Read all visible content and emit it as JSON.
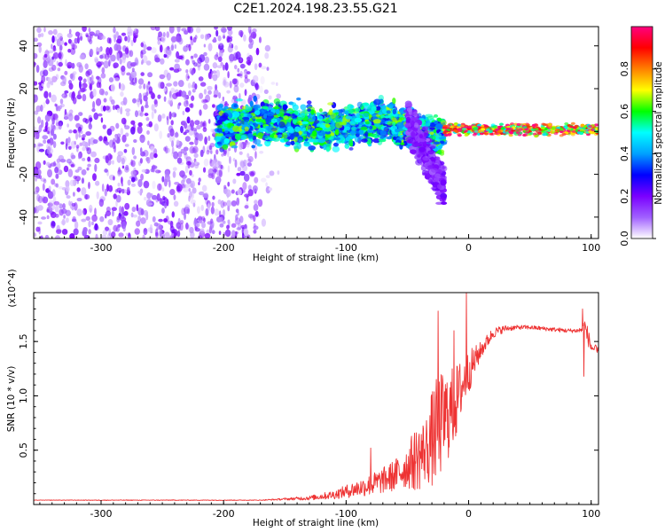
{
  "chart_data": [
    {
      "type": "heatmap",
      "title": "C2E1.2024.198.23.55.G21",
      "xlabel": "Height of straight line (km)",
      "ylabel": "Frequency (Hz)",
      "xlim": [
        -355,
        106
      ],
      "ylim": [
        -50,
        49
      ],
      "x_ticks": [
        -300,
        -200,
        -100,
        0,
        100
      ],
      "x_tick_labels": [
        "-300",
        "-200",
        "-100",
        "0",
        "100"
      ],
      "y_ticks": [
        -40,
        -20,
        0,
        20,
        40
      ],
      "y_tick_labels": [
        "-40",
        "-20",
        "0",
        "20",
        "40"
      ],
      "colorbar": {
        "label": "Normalized spectral amplitude",
        "range": [
          0,
          1
        ],
        "ticks": [
          0,
          0.2,
          0.4,
          0.6,
          0.8
        ],
        "tick_labels": [
          "0.0",
          "0.2",
          "0.4",
          "0.6",
          "0.8"
        ],
        "colors": [
          "#ffffff",
          "#a060ff",
          "#7a00ff",
          "#0000ff",
          "#00a0ff",
          "#00ffff",
          "#00ff00",
          "#ffff00",
          "#ff8000",
          "#ff0000",
          "#ff0080"
        ]
      },
      "regions": [
        {
          "x": [
            -355,
            -170
          ],
          "freq_range": [
            -50,
            49
          ],
          "amplitude": 0.12,
          "texture": "scattered speckle"
        },
        {
          "x": [
            -170,
            -155
          ],
          "freq_range": [
            -45,
            40
          ],
          "amplitude": 0.05,
          "texture": "faint speckle"
        },
        {
          "x": [
            -205,
            -20
          ],
          "center_freq": 3,
          "half_width": 7,
          "amplitude": 0.45,
          "texture": "clustered band"
        },
        {
          "x": [
            -50,
            -20
          ],
          "center_freq": -15,
          "half_width": 8,
          "amplitude": 0.15,
          "texture": "descending streak"
        },
        {
          "x": [
            -20,
            106
          ],
          "center_freq": 1,
          "half_width": 2,
          "amplitude": 0.75,
          "texture": "narrow carrier"
        }
      ]
    },
    {
      "type": "line",
      "title": "",
      "xlabel": "Height of straight line (km)",
      "ylabel": "SNR (10 * v/v)",
      "y_multiplier": "(x10^4)",
      "xlim": [
        -355,
        106
      ],
      "ylim": [
        0,
        1.95
      ],
      "x_ticks": [
        -300,
        -200,
        -100,
        0,
        100
      ],
      "x_tick_labels": [
        "-300",
        "-200",
        "-100",
        "0",
        "100"
      ],
      "y_ticks": [
        0.5,
        1.0,
        1.5
      ],
      "y_tick_labels": [
        "0.5",
        "1.0",
        "1.5"
      ],
      "series": [
        {
          "color": "#ee3333",
          "x": [
            -355,
            -300,
            -250,
            -200,
            -170,
            -150,
            -130,
            -110,
            -100,
            -90,
            -80,
            -70,
            -60,
            -50,
            -45,
            -40,
            -35,
            -30,
            -25,
            -20,
            -15,
            -10,
            -5,
            0,
            10,
            20,
            30,
            40,
            50,
            60,
            70,
            80,
            90,
            95,
            100,
            106
          ],
          "y": [
            0.04,
            0.04,
            0.04,
            0.04,
            0.04,
            0.05,
            0.06,
            0.09,
            0.12,
            0.15,
            0.18,
            0.22,
            0.27,
            0.35,
            0.4,
            0.45,
            0.5,
            0.6,
            0.7,
            0.78,
            0.85,
            0.95,
            1.1,
            1.22,
            1.42,
            1.58,
            1.62,
            1.63,
            1.63,
            1.62,
            1.61,
            1.6,
            1.6,
            1.63,
            1.45,
            1.4
          ],
          "noise": [
            0.002,
            0.003,
            0.003,
            0.003,
            0.003,
            0.01,
            0.02,
            0.04,
            0.06,
            0.08,
            0.1,
            0.12,
            0.15,
            0.2,
            0.28,
            0.32,
            0.3,
            0.45,
            0.5,
            0.45,
            0.4,
            0.35,
            0.25,
            0.2,
            0.08,
            0.05,
            0.03,
            0.02,
            0.02,
            0.02,
            0.02,
            0.02,
            0.02,
            0.1,
            0.06,
            0.04
          ],
          "spikes": [
            [
              -80,
              0.52
            ],
            [
              -25,
              1.78
            ],
            [
              -12,
              1.6
            ],
            [
              -2,
              1.95
            ],
            [
              93,
              1.8
            ],
            [
              94,
              1.18
            ]
          ]
        }
      ]
    }
  ]
}
